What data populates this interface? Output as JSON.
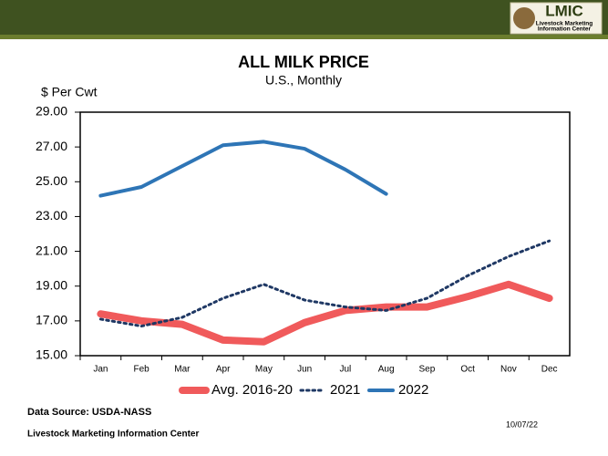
{
  "header": {
    "logo_title": "LMIC",
    "logo_line1": "Livestock Marketing",
    "logo_line2": "Information Center"
  },
  "chart_data": {
    "type": "line",
    "title": "ALL MILK PRICE",
    "subtitle": "U.S., Monthly",
    "y_label": "$ Per Cwt",
    "categories": [
      "Jan",
      "Feb",
      "Mar",
      "Apr",
      "May",
      "Jun",
      "Jul",
      "Aug",
      "Sep",
      "Oct",
      "Nov",
      "Dec"
    ],
    "series": [
      {
        "name": "Avg. 2016-20",
        "color": "#f05a5b",
        "style": "solid",
        "width": 8,
        "values": [
          17.4,
          17.0,
          16.8,
          15.9,
          15.8,
          16.9,
          17.6,
          17.8,
          17.8,
          18.4,
          19.1,
          18.3
        ]
      },
      {
        "name": "2021",
        "color": "#1f3864",
        "style": "dotted",
        "width": 3,
        "values": [
          17.1,
          16.7,
          17.2,
          18.3,
          19.1,
          18.2,
          17.8,
          17.6,
          18.3,
          19.6,
          20.7,
          21.6
        ]
      },
      {
        "name": "2022",
        "color": "#2e75b6",
        "style": "solid",
        "width": 4,
        "values": [
          24.2,
          24.7,
          25.9,
          27.1,
          27.3,
          26.9,
          25.7,
          24.3,
          null,
          null,
          null,
          null
        ]
      }
    ],
    "ylim": [
      15,
      29
    ],
    "yticks": [
      {
        "value": 15,
        "label": "15.00"
      },
      {
        "value": 17,
        "label": "17.00"
      },
      {
        "value": 19,
        "label": "19.00"
      },
      {
        "value": 21,
        "label": "21.00"
      },
      {
        "value": 23,
        "label": "23.00"
      },
      {
        "value": 25,
        "label": "25.00"
      },
      {
        "value": 27,
        "label": "27.00"
      },
      {
        "value": 29,
        "label": "29.00"
      }
    ],
    "grid": false,
    "legend": "bottom"
  },
  "footer": {
    "source": "Data Source:  USDA-NASS",
    "organization": "Livestock Marketing Information Center",
    "date": "10/07/22"
  }
}
